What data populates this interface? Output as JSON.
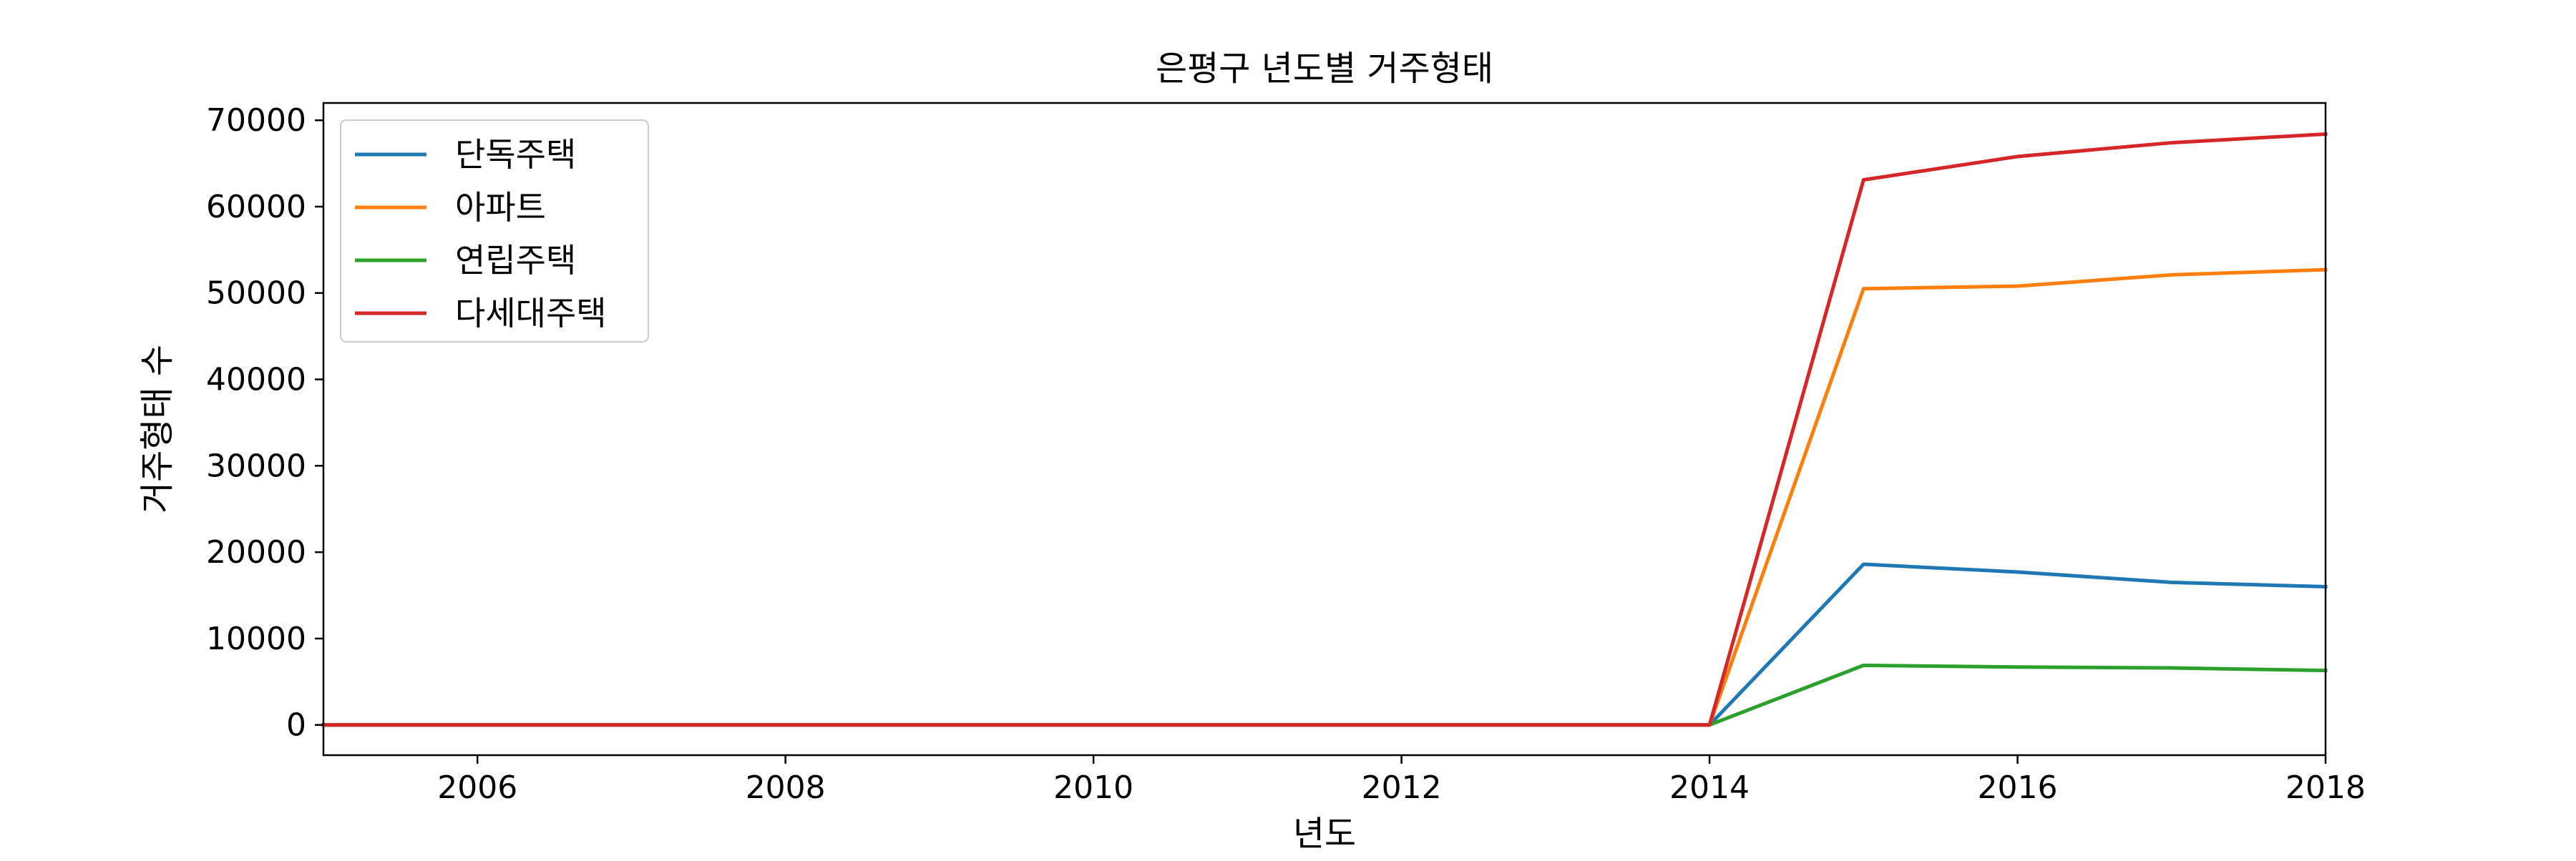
{
  "chart_data": {
    "type": "line",
    "title": "은평구 년도별 거주형태",
    "xlabel": "년도",
    "ylabel": "거주형태 수",
    "xlim": [
      2005,
      2018
    ],
    "ylim": [
      -3500,
      72000
    ],
    "x": [
      2005,
      2006,
      2007,
      2008,
      2009,
      2010,
      2011,
      2012,
      2013,
      2014,
      2015,
      2016,
      2017,
      2018
    ],
    "x_ticks": [
      2006,
      2008,
      2010,
      2012,
      2014,
      2016,
      2018
    ],
    "x_tick_labels": [
      "2006",
      "2008",
      "2010",
      "2012",
      "2014",
      "2016",
      "2018"
    ],
    "y_ticks": [
      0,
      10000,
      20000,
      30000,
      40000,
      50000,
      60000,
      70000
    ],
    "y_tick_labels": [
      "0",
      "10000",
      "20000",
      "30000",
      "40000",
      "50000",
      "60000",
      "70000"
    ],
    "grid": false,
    "legend_position": "top-left",
    "series": [
      {
        "name": "단독주택",
        "color": "#1f77b4",
        "values": [
          0,
          0,
          0,
          0,
          0,
          0,
          0,
          0,
          0,
          0,
          18600,
          17700,
          16500,
          16000
        ]
      },
      {
        "name": "아파트",
        "color": "#ff7f0e",
        "values": [
          0,
          0,
          0,
          0,
          0,
          0,
          0,
          0,
          0,
          0,
          50500,
          50800,
          52100,
          52700
        ]
      },
      {
        "name": "연립주택",
        "color": "#2ca02c",
        "values": [
          0,
          0,
          0,
          0,
          0,
          0,
          0,
          0,
          0,
          0,
          6900,
          6700,
          6600,
          6300
        ]
      },
      {
        "name": "다세대주택",
        "color": "#d62728",
        "values": [
          0,
          0,
          0,
          0,
          0,
          0,
          0,
          0,
          0,
          0,
          63100,
          65800,
          67400,
          68400
        ]
      }
    ]
  }
}
